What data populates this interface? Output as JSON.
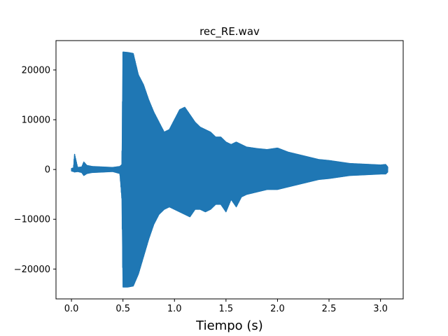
{
  "chart_data": {
    "type": "line",
    "title": "rec_RE.wav",
    "xlabel": "Tiempo (s)",
    "ylabel": "",
    "xlim": [
      -0.15,
      3.22
    ],
    "ylim": [
      -26000,
      25900
    ],
    "x_ticks": [
      0.0,
      0.5,
      1.0,
      1.5,
      2.0,
      2.5,
      3.0
    ],
    "x_tick_labels": [
      "0.0",
      "0.5",
      "1.0",
      "1.5",
      "2.0",
      "2.5",
      "3.0"
    ],
    "y_ticks": [
      -20000,
      -10000,
      0,
      10000,
      20000
    ],
    "y_tick_labels": [
      "−20000",
      "−10000",
      "0",
      "10000",
      "20000"
    ],
    "grid": false,
    "series": [
      {
        "color": "#1f77b4",
        "envelope": {
          "t": [
            0.0,
            0.02,
            0.03,
            0.06,
            0.1,
            0.12,
            0.15,
            0.2,
            0.3,
            0.4,
            0.47,
            0.49,
            0.5,
            0.55,
            0.6,
            0.65,
            0.7,
            0.75,
            0.8,
            0.85,
            0.9,
            0.95,
            1.0,
            1.05,
            1.1,
            1.15,
            1.2,
            1.25,
            1.3,
            1.35,
            1.4,
            1.45,
            1.5,
            1.55,
            1.6,
            1.65,
            1.7,
            1.8,
            1.9,
            2.0,
            2.1,
            2.2,
            2.3,
            2.4,
            2.5,
            2.6,
            2.7,
            2.8,
            2.9,
            3.0,
            3.05,
            3.07
          ],
          "max": [
            200,
            300,
            3100,
            400,
            500,
            1500,
            800,
            600,
            500,
            400,
            600,
            1000,
            23600,
            23500,
            23300,
            19000,
            17000,
            14000,
            11500,
            9500,
            7500,
            8000,
            10000,
            12000,
            12500,
            11000,
            9500,
            8500,
            8000,
            7500,
            6500,
            6500,
            5500,
            5000,
            5500,
            5000,
            4500,
            4200,
            4000,
            4300,
            3500,
            3000,
            2500,
            2000,
            1800,
            1500,
            1200,
            1100,
            1000,
            900,
            1000,
            500
          ],
          "min": [
            -300,
            -400,
            -500,
            -400,
            -600,
            -1200,
            -800,
            -600,
            -500,
            -400,
            -800,
            -6000,
            -23600,
            -23600,
            -23400,
            -21000,
            -17500,
            -14000,
            -11000,
            -9000,
            -8000,
            -7500,
            -8000,
            -8500,
            -9000,
            -9500,
            -8000,
            -8000,
            -8500,
            -8000,
            -7000,
            -7000,
            -8500,
            -6000,
            -7500,
            -5500,
            -5000,
            -4500,
            -4000,
            -4000,
            -3500,
            -3000,
            -2500,
            -2000,
            -1800,
            -1500,
            -1200,
            -1100,
            -1000,
            -900,
            -900,
            -500
          ]
        }
      }
    ]
  }
}
